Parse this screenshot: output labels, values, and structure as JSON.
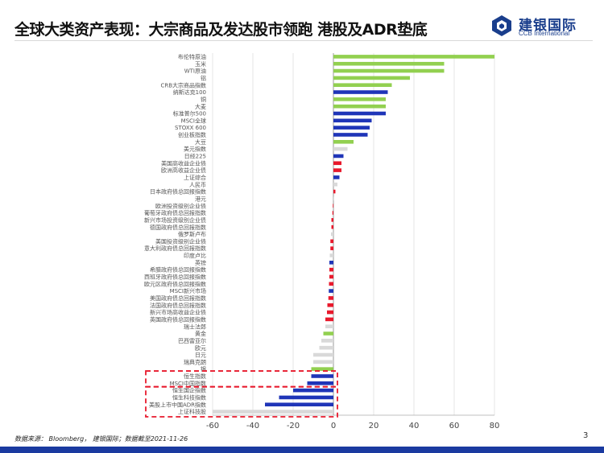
{
  "header": {
    "title": "全球大类资产表现：大宗商品及发达股市领跑 港股及ADR垫底",
    "logo_cn": "建银国际",
    "logo_en": "CCB International"
  },
  "footer": {
    "source": "数据来源： Bloomberg， 建银国际；数据截至2021-11-26",
    "page": "3"
  },
  "colors": {
    "commodity": "#92d050",
    "equity": "#1f35b8",
    "credit": "#e8192c",
    "fx": "#d9d9d9",
    "highlight_box": "#e8192c",
    "brand": "#1a3e8c"
  },
  "chart_data": {
    "type": "bar",
    "orientation": "horizontal",
    "categories": [
      "布伦特原油",
      "玉米",
      "WTI原油",
      "铝",
      "CRB大宗商品指数",
      "纳斯达克100",
      "铜",
      "大麦",
      "标准普尔500",
      "MSCI全球",
      "STOXX 600",
      "创业板指数",
      "大豆",
      "美元指数",
      "日经225",
      "美国高收益企业债",
      "欧洲高收益企业债",
      "上证综合",
      "人民币",
      "日本政府债总回报指数",
      "港元",
      "欧洲投资级别企业债",
      "葡萄牙政府债总回报指数",
      "新兴市场投资级别企业债",
      "德国政府债总回报指数",
      "俄罗斯卢布",
      "美国投资级别企业债",
      "意大利政府债总回报指数",
      "印度卢比",
      "英镑",
      "希腊政府债总回报指数",
      "西班牙政府债总回报指数",
      "欧元区政府债总回报指数",
      "MSCI新兴市场",
      "美国政府债总回报指数",
      "法国政府债总回报指数",
      "新兴市场高收益企业债",
      "英国政府债总回报指数",
      "瑞士法郎",
      "黄金",
      "巴西雷亚尔",
      "欧元",
      "日元",
      "瑞典克朗",
      "银",
      "恒生指数",
      "MSCI中国指数",
      "恒生国企指数",
      "恒生科技指数",
      "美股上市中国ADR指数",
      "上证科技股"
    ],
    "values": [
      80,
      55,
      55,
      38,
      29,
      27,
      26,
      26,
      26,
      19,
      18,
      17,
      10,
      7,
      5,
      4,
      4,
      3,
      2,
      1,
      0,
      -0.3,
      -0.5,
      -1,
      -1,
      -1.2,
      -1.5,
      -1.5,
      -1.8,
      -2,
      -2,
      -2,
      -2.2,
      -2.3,
      -2.5,
      -3,
      -3.2,
      -4,
      -4,
      -5,
      -6,
      -7,
      -10,
      -10,
      -11,
      -11,
      -13,
      -20,
      -27,
      -34,
      -60
    ],
    "groups": [
      "commodity",
      "commodity",
      "commodity",
      "commodity",
      "commodity",
      "equity",
      "commodity",
      "commodity",
      "equity",
      "equity",
      "equity",
      "equity",
      "commodity",
      "fx",
      "equity",
      "credit",
      "credit",
      "equity",
      "fx",
      "credit",
      "fx",
      "credit",
      "credit",
      "credit",
      "credit",
      "fx",
      "credit",
      "credit",
      "fx",
      "equity",
      "credit",
      "credit",
      "credit",
      "equity",
      "credit",
      "credit",
      "credit",
      "credit",
      "fx",
      "commodity",
      "fx",
      "fx",
      "fx",
      "fx",
      "commodity",
      "equity",
      "equity",
      "equity",
      "equity",
      "equity",
      "fx"
    ],
    "xlim": [
      -60,
      80
    ],
    "xticks": [
      "-60",
      "-40",
      "-20",
      "0",
      "20",
      "40",
      "60",
      "80"
    ],
    "xtick_values": [
      -60,
      -40,
      -20,
      0,
      20,
      40,
      60,
      80
    ],
    "grid": true,
    "legend": "none",
    "highlight_categories": [
      "恒生指数",
      "MSCI中国指数",
      "恒生国企指数",
      "恒生科技指数",
      "美股上市中国ADR指数",
      "上证科技股"
    ]
  }
}
